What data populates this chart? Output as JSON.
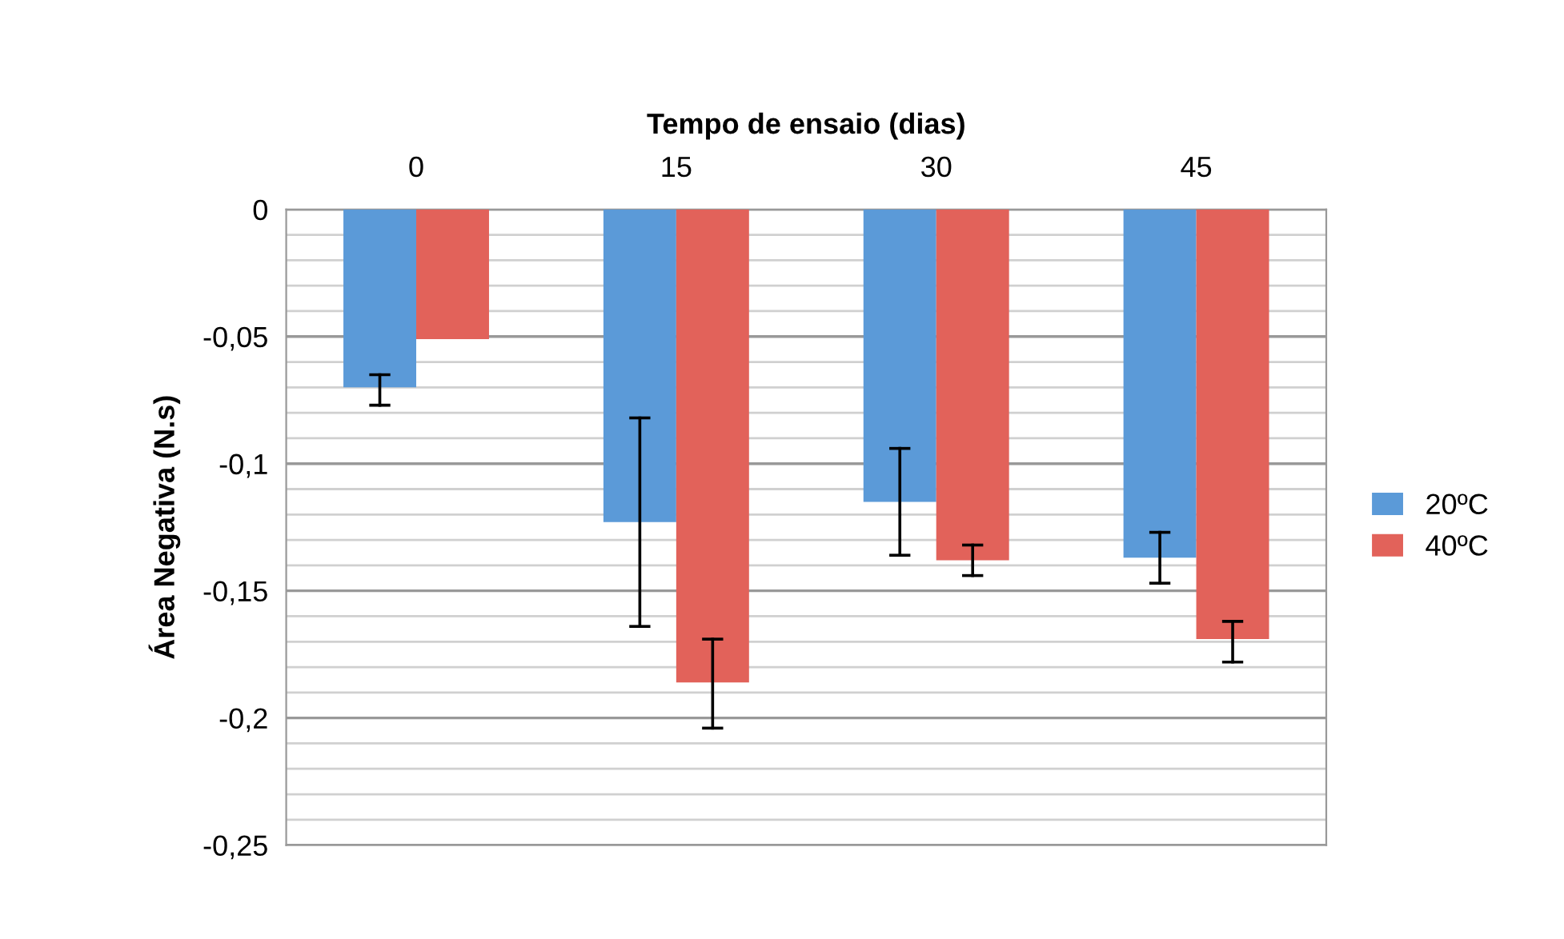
{
  "chart_data": {
    "type": "bar",
    "xlabel": "Tempo de ensaio (dias)",
    "ylabel": "Área Negativa (N.s)",
    "categories": [
      "0",
      "15",
      "30",
      "45"
    ],
    "series": [
      {
        "name": "20ºC",
        "color": "#5b9ad8",
        "values": [
          -0.07,
          -0.123,
          -0.115,
          -0.137
        ],
        "errors": [
          [
            -0.077,
            -0.065
          ],
          [
            -0.164,
            -0.082
          ],
          [
            -0.136,
            -0.094
          ],
          [
            -0.147,
            -0.127
          ]
        ]
      },
      {
        "name": "40ºC",
        "color": "#e2625a",
        "values": [
          -0.051,
          -0.186,
          -0.138,
          -0.169
        ],
        "errors": [
          null,
          [
            -0.204,
            -0.169
          ],
          [
            -0.144,
            -0.132
          ],
          [
            -0.178,
            -0.162
          ]
        ]
      }
    ],
    "ylim": [
      -0.25,
      0
    ],
    "yticks": [
      0,
      {
        "value": -0.01,
        "label": null
      },
      {
        "value": -0.02,
        "label": null
      },
      {
        "value": -0.03,
        "label": null
      },
      {
        "value": -0.04,
        "label": null
      },
      {
        "value": -0.05,
        "label": "-0,05"
      },
      {
        "value": -0.06,
        "label": null
      },
      {
        "value": -0.07,
        "label": null
      },
      {
        "value": -0.08,
        "label": null
      },
      {
        "value": -0.09,
        "label": null
      },
      {
        "value": -0.1,
        "label": "-0,1"
      },
      {
        "value": -0.11,
        "label": null
      },
      {
        "value": -0.12,
        "label": null
      },
      {
        "value": -0.13,
        "label": null
      },
      {
        "value": -0.14,
        "label": null
      },
      {
        "value": -0.15,
        "label": "-0,15"
      },
      {
        "value": -0.16,
        "label": null
      },
      {
        "value": -0.17,
        "label": null
      },
      {
        "value": -0.18,
        "label": null
      },
      {
        "value": -0.19,
        "label": null
      },
      {
        "value": -0.2,
        "label": "-0,2"
      },
      {
        "value": -0.21,
        "label": null
      },
      {
        "value": -0.22,
        "label": null
      },
      {
        "value": -0.23,
        "label": null
      },
      {
        "value": -0.24,
        "label": null
      },
      {
        "value": -0.25,
        "label": "-0,25"
      }
    ],
    "grid": "y",
    "legend": "right"
  }
}
